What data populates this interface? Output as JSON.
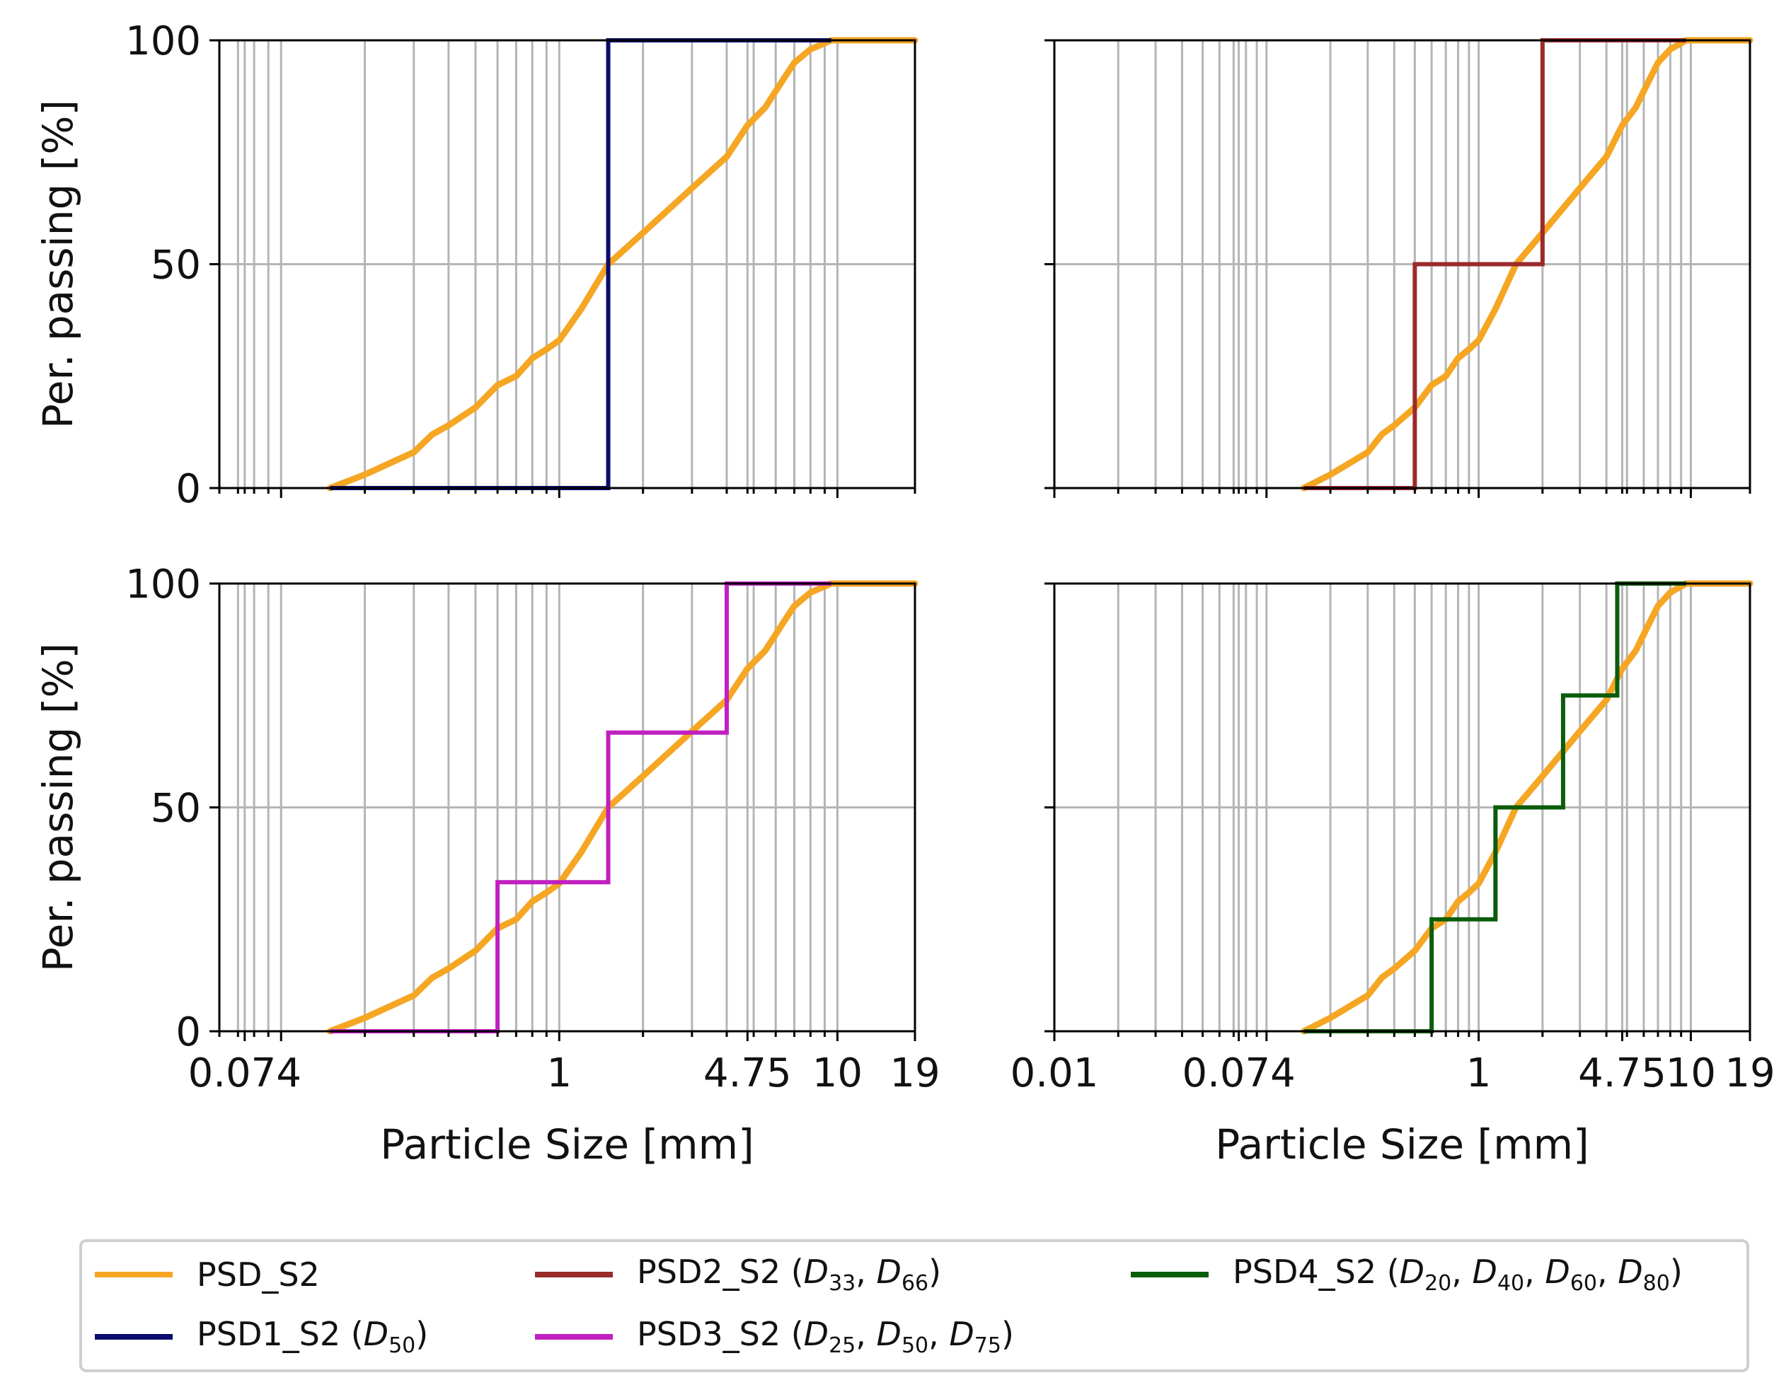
{
  "chart_data": {
    "type": "line",
    "layout": "2x2",
    "colors": {
      "psd": "#f5a623",
      "psd1": "#0b0b6f",
      "psd2": "#9a2b2b",
      "psd3": "#c020c0",
      "psd4": "#0b5d0b",
      "grid": "#b5b5b5",
      "axis": "#000000"
    },
    "base_curve": {
      "name": "PSD_S2",
      "x": [
        0.15,
        0.2,
        0.3,
        0.35,
        0.4,
        0.5,
        0.6,
        0.7,
        0.8,
        0.9,
        1.0,
        1.2,
        1.5,
        2.0,
        3.0,
        4.0,
        4.75,
        5.5,
        6.5,
        7.0,
        8.0,
        9.5,
        19.0
      ],
      "y": [
        0,
        3,
        8,
        12,
        14,
        18,
        23,
        25,
        29,
        31,
        33,
        40,
        50,
        57,
        67,
        74,
        81,
        85,
        92,
        95,
        98,
        100,
        100
      ]
    },
    "panels": [
      {
        "id": "top-left",
        "xlim": [
          0.06,
          19
        ],
        "ylim": [
          0,
          100
        ],
        "xticks": [],
        "xtick_labels": [],
        "yticks": [
          0,
          50,
          100
        ],
        "ytick_labels": [
          "0",
          "50",
          "100"
        ],
        "ylabel": "Per. passing [%]",
        "xlabel": "",
        "step": {
          "name": "PSD1_S2",
          "colorKey": "psd1",
          "x": [
            0.15,
            1.5,
            1.5,
            9.5
          ],
          "y": [
            0,
            0,
            100,
            100
          ]
        }
      },
      {
        "id": "top-right",
        "xlim": [
          0.01,
          19
        ],
        "ylim": [
          0,
          100
        ],
        "xticks": [],
        "xtick_labels": [],
        "yticks": [
          0,
          50,
          100
        ],
        "ytick_labels": [],
        "ylabel": "",
        "xlabel": "",
        "step": {
          "name": "PSD2_S2",
          "colorKey": "psd2",
          "x": [
            0.15,
            0.5,
            0.5,
            2.0,
            2.0,
            9.5
          ],
          "y": [
            0,
            0,
            50,
            50,
            100,
            100
          ]
        }
      },
      {
        "id": "bottom-left",
        "xlim": [
          0.06,
          19
        ],
        "ylim": [
          0,
          100
        ],
        "xticks": [
          0.074,
          1,
          4.75,
          10,
          19
        ],
        "xtick_labels": [
          "0.074",
          "1",
          "4.75",
          "10",
          "19"
        ],
        "yticks": [
          0,
          50,
          100
        ],
        "ytick_labels": [
          "0",
          "50",
          "100"
        ],
        "ylabel": "Per. passing [%]",
        "xlabel": "Particle Size [mm]",
        "step": {
          "name": "PSD3_S2",
          "colorKey": "psd3",
          "x": [
            0.15,
            0.6,
            0.6,
            1.5,
            1.5,
            4.0,
            4.0,
            9.5
          ],
          "y": [
            0,
            0,
            33.3,
            33.3,
            66.7,
            66.7,
            100,
            100
          ]
        }
      },
      {
        "id": "bottom-right",
        "xlim": [
          0.01,
          19
        ],
        "ylim": [
          0,
          100
        ],
        "xticks": [
          0.01,
          0.074,
          1,
          4.75,
          10,
          19
        ],
        "xtick_labels": [
          "0.01",
          "0.074",
          "1",
          "4.75",
          "10",
          "19"
        ],
        "yticks": [
          0,
          50,
          100
        ],
        "ytick_labels": [],
        "ylabel": "",
        "xlabel": "Particle Size [mm]",
        "step": {
          "name": "PSD4_S2",
          "colorKey": "psd4",
          "x": [
            0.15,
            0.6,
            0.6,
            1.2,
            1.2,
            2.5,
            2.5,
            4.5,
            4.5,
            9.5
          ],
          "y": [
            0,
            0,
            25,
            25,
            50,
            50,
            75,
            75,
            100,
            100
          ]
        }
      }
    ],
    "legend": {
      "placement": "bottom",
      "items": [
        {
          "key": "psd",
          "name": "PSD_S2",
          "d": []
        },
        {
          "key": "psd1",
          "name": "PSD1_S2",
          "d": [
            "50"
          ]
        },
        {
          "key": "psd2",
          "name": "PSD2_S2",
          "d": [
            "33",
            "66"
          ]
        },
        {
          "key": "psd3",
          "name": "PSD3_S2",
          "d": [
            "25",
            "50",
            "75"
          ]
        },
        {
          "key": "psd4",
          "name": "PSD4_S2",
          "d": [
            "20",
            "40",
            "60",
            "80"
          ]
        }
      ]
    }
  }
}
